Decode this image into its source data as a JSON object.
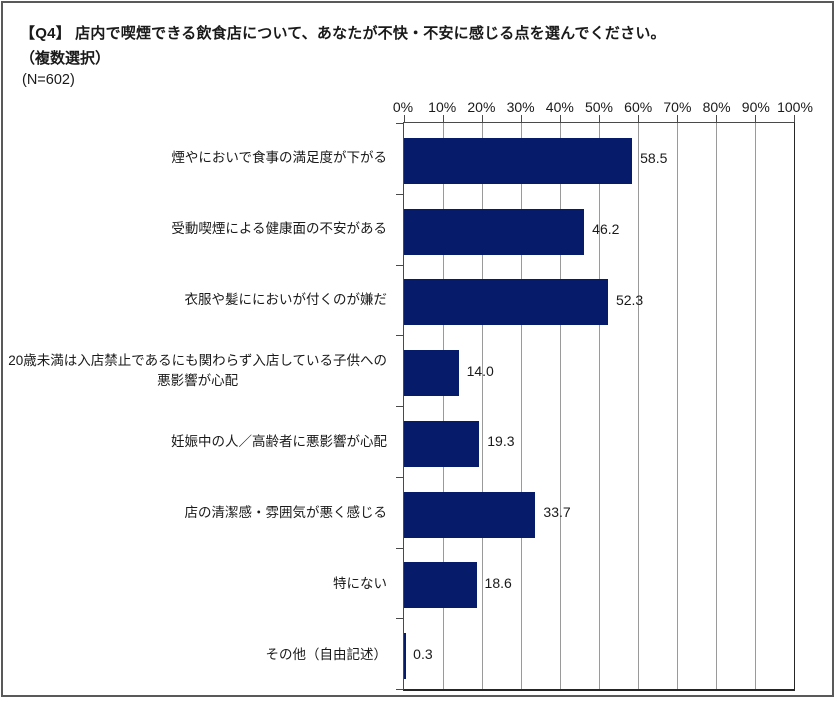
{
  "header": {
    "title": "【Q4】 店内で喫煙できる飲食店について、あなたが不快・不安に感じる点を選んでください。",
    "subtitle": "（複数選択）",
    "sample_size": "(N=602)"
  },
  "chart_data": {
    "type": "bar",
    "orientation": "horizontal",
    "title": "",
    "xlabel": "",
    "ylabel": "",
    "sample_size": 602,
    "categories": [
      "煙やにおいで食事の満足度が下がる",
      "受動喫煙による健康面の不安がある",
      "衣服や髪ににおいが付くのが嫌だ",
      "20歳未満は入店禁止であるにも関わらず入店している子供への\n悪影響が心配",
      "妊娠中の人／高齢者に悪影響が心配",
      "店の清潔感・雰囲気が悪く感じる",
      "特にない",
      "その他（自由記述）"
    ],
    "values": [
      58.5,
      46.2,
      52.3,
      14.0,
      19.3,
      33.7,
      18.6,
      0.3
    ],
    "value_labels": [
      "58.5",
      "46.2",
      "52.3",
      "14.0",
      "19.3",
      "33.7",
      "18.6",
      "0.3"
    ],
    "x_axis": {
      "position": "top",
      "min": 0,
      "max": 100,
      "tick_interval": 10,
      "ticks": [
        "0%",
        "10%",
        "20%",
        "30%",
        "40%",
        "50%",
        "60%",
        "70%",
        "80%",
        "90%",
        "100%"
      ]
    },
    "grid": "vertical",
    "legend": "none",
    "colors": {
      "bar": "#071B6B",
      "gridline": "#9a9a9a",
      "axis": "#4a4a4a",
      "text": "#1a1a1a"
    }
  }
}
